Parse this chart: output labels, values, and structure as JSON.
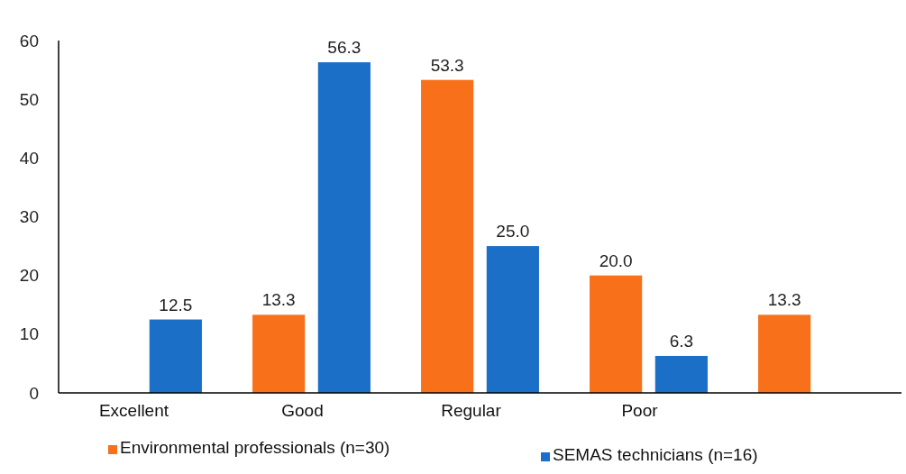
{
  "chart_data": {
    "type": "bar",
    "categories": [
      "Excellent",
      "Good",
      "Regular",
      "Poor",
      null
    ],
    "series": [
      {
        "name": "Environmental professionals (n=30)",
        "color": "#f8701a",
        "values": [
          null,
          13.3,
          53.3,
          20.0,
          13.3
        ],
        "value_labels": [
          null,
          "13.3",
          "53.3",
          "20.0",
          "13.3"
        ]
      },
      {
        "name": "SEMAS technicians (n=16)",
        "color": "#1c6fc6",
        "values": [
          12.5,
          56.3,
          25.0,
          6.3,
          null
        ],
        "value_labels": [
          "12.5",
          "56.3",
          "25.0",
          "6.3",
          null
        ]
      }
    ],
    "ylim": [
      0,
      60
    ],
    "yticks": [
      0,
      10,
      20,
      30,
      40,
      50,
      60
    ],
    "grid": false,
    "legend": "bottom"
  }
}
